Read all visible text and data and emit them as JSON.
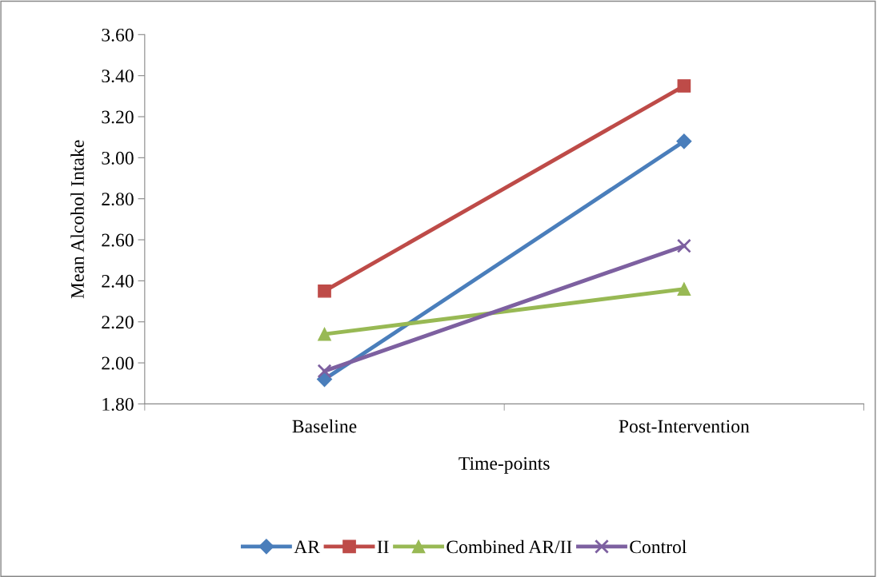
{
  "chart_data": {
    "type": "line",
    "xlabel": "Time-points",
    "ylabel": "Mean Alcohol Intake",
    "categories": [
      "Baseline",
      "Post-Intervention"
    ],
    "series": [
      {
        "name": "AR",
        "color": "#4a7ebb",
        "marker": "diamond",
        "values": [
          1.92,
          3.08
        ]
      },
      {
        "name": "II",
        "color": "#be4b48",
        "marker": "square",
        "values": [
          2.35,
          3.35
        ]
      },
      {
        "name": "Combined AR/II",
        "color": "#98b954",
        "marker": "triangle",
        "values": [
          2.14,
          2.36
        ]
      },
      {
        "name": "Control",
        "color": "#7d60a0",
        "marker": "cross",
        "values": [
          1.96,
          2.57
        ]
      }
    ],
    "ylim": [
      1.8,
      3.6
    ],
    "yticks": [
      {
        "value": 1.8,
        "label": "1.80"
      },
      {
        "value": 2.0,
        "label": "2.00"
      },
      {
        "value": 2.2,
        "label": "2.20"
      },
      {
        "value": 2.4,
        "label": "2.40"
      },
      {
        "value": 2.6,
        "label": "2.60"
      },
      {
        "value": 2.8,
        "label": "2.80"
      },
      {
        "value": 3.0,
        "label": "3.00"
      },
      {
        "value": 3.2,
        "label": "3.20"
      },
      {
        "value": 3.4,
        "label": "3.40"
      },
      {
        "value": 3.6,
        "label": "3.60"
      }
    ],
    "grid": false,
    "legend": "bottom",
    "line_style": "solid"
  }
}
